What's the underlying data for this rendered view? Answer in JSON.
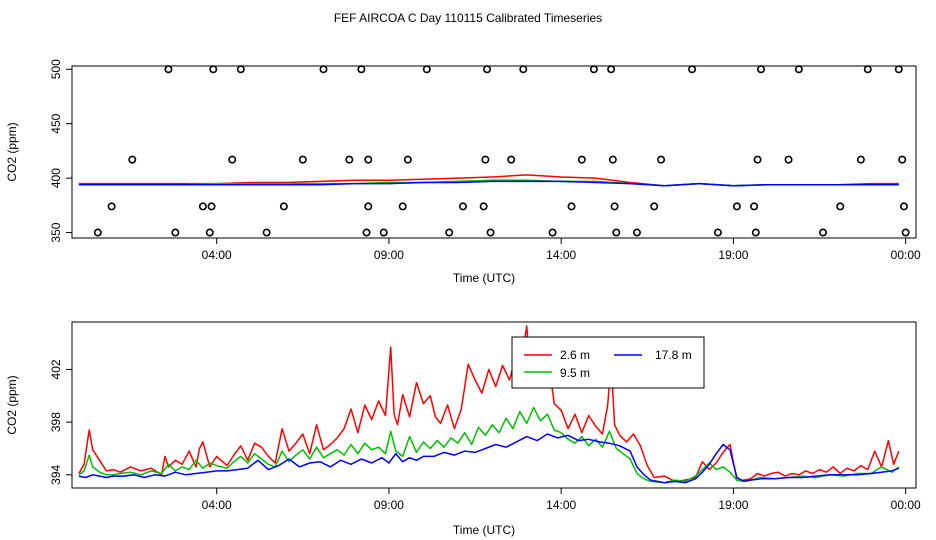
{
  "title": "FEF AIRCOA C  Day 110115  Calibrated Timeseries",
  "chart_data": [
    {
      "type": "line",
      "panel": "top",
      "xlabel": "Time (UTC)",
      "ylabel": "CO2 (ppm)",
      "xlim": [
        -0.2,
        24.3
      ],
      "ylim": [
        345,
        503
      ],
      "xticks": [
        4,
        9,
        14,
        19,
        24
      ],
      "xtick_labels": [
        "04:00",
        "09:00",
        "14:00",
        "19:00",
        "00:00"
      ],
      "yticks": [
        350,
        400,
        450,
        500
      ],
      "ytick_labels": [
        "350",
        "400",
        "450",
        "500"
      ],
      "calibration_points": {
        "x": [
          0.55,
          1.55,
          2.6,
          0.95,
          2.8,
          3.6,
          3.8,
          3.85,
          3.9,
          4.45,
          4.7,
          5.45,
          5.95,
          6.5,
          7.1,
          7.85,
          8.2,
          8.35,
          8.4,
          8.4,
          8.85,
          9.4,
          9.55,
          10.1,
          10.75,
          11.15,
          11.75,
          11.8,
          11.85,
          11.95,
          12.55,
          12.9,
          13.75,
          14.3,
          14.6,
          14.95,
          15.45,
          15.5,
          15.55,
          15.6,
          16.2,
          16.7,
          16.9,
          17.8,
          18.55,
          19.1,
          19.6,
          19.65,
          19.7,
          19.8,
          20.6,
          20.9,
          21.6,
          22.1,
          22.7,
          22.9,
          23.8,
          23.9,
          23.95,
          24.0
        ],
        "y": [
          350,
          417,
          500,
          374,
          350,
          374,
          350,
          374,
          500,
          417,
          500,
          350,
          374,
          417,
          500,
          417,
          500,
          350,
          374,
          417,
          350,
          374,
          417,
          500,
          350,
          374,
          374,
          417,
          500,
          350,
          417,
          500,
          350,
          374,
          417,
          500,
          500,
          417,
          374,
          350,
          350,
          374,
          417,
          500,
          350,
          374,
          374,
          350,
          417,
          500,
          417,
          500,
          350,
          374,
          417,
          500,
          500,
          417,
          374,
          350
        ]
      },
      "series": [
        {
          "name": "2.6 m",
          "color": "#ff0000",
          "x": [
            0,
            1,
            2,
            3,
            4,
            5,
            6,
            7,
            8,
            9,
            10,
            11,
            12,
            13,
            14,
            15,
            16,
            17,
            18,
            19,
            20,
            21,
            22,
            23,
            23.8
          ],
          "y": [
            395,
            395,
            395,
            395,
            395,
            396,
            396,
            397,
            398,
            398,
            399,
            400,
            401,
            403,
            401,
            400,
            396,
            393,
            395,
            393,
            394,
            394,
            394,
            395,
            395
          ]
        },
        {
          "name": "9.5 m",
          "color": "#00c000",
          "x": [
            0,
            1,
            2,
            3,
            4,
            5,
            6,
            7,
            8,
            9,
            10,
            11,
            12,
            13,
            14,
            15,
            16,
            17,
            18,
            19,
            20,
            21,
            22,
            23,
            23.8
          ],
          "y": [
            394,
            394,
            394,
            394,
            395,
            395,
            395,
            395,
            395,
            396,
            396,
            397,
            398,
            398,
            397,
            397,
            395,
            393,
            395,
            393,
            394,
            394,
            394,
            394,
            394
          ]
        },
        {
          "name": "17.8 m",
          "color": "#0000ff",
          "x": [
            0,
            1,
            2,
            3,
            4,
            5,
            6,
            7,
            8,
            9,
            10,
            11,
            12,
            13,
            14,
            15,
            16,
            17,
            18,
            19,
            20,
            21,
            22,
            23,
            23.8
          ],
          "y": [
            394,
            394,
            394,
            394,
            394,
            394,
            394,
            394,
            395,
            395,
            396,
            396,
            397,
            397,
            397,
            396,
            395,
            393,
            395,
            393,
            394,
            394,
            394,
            394,
            394
          ]
        }
      ]
    },
    {
      "type": "line",
      "panel": "bottom",
      "xlabel": "Time (UTC)",
      "ylabel": "CO2 (ppm)",
      "xlim": [
        -0.2,
        24.3
      ],
      "ylim": [
        393.0,
        405.6
      ],
      "xticks": [
        4,
        9,
        14,
        19,
        24
      ],
      "xtick_labels": [
        "04:00",
        "09:00",
        "14:00",
        "19:00",
        "00:00"
      ],
      "yticks": [
        394,
        398,
        402
      ],
      "ytick_labels": [
        "394",
        "398",
        "402"
      ],
      "legend": {
        "position": "top-center",
        "entries": [
          "2.6 m",
          "9.5 m",
          "17.8 m"
        ]
      },
      "series": [
        {
          "name": "2.6 m",
          "color": "#ff0000",
          "x": [
            0.0,
            0.15,
            0.3,
            0.4,
            0.6,
            0.8,
            1.0,
            1.2,
            1.5,
            1.8,
            2.1,
            2.4,
            2.5,
            2.6,
            2.8,
            3.0,
            3.2,
            3.4,
            3.5,
            3.6,
            3.8,
            4.0,
            4.3,
            4.5,
            4.7,
            4.9,
            5.1,
            5.3,
            5.5,
            5.7,
            5.9,
            6.1,
            6.3,
            6.5,
            6.7,
            6.9,
            7.1,
            7.3,
            7.5,
            7.7,
            7.9,
            8.1,
            8.3,
            8.5,
            8.7,
            8.9,
            9.05,
            9.15,
            9.25,
            9.4,
            9.6,
            9.8,
            10.0,
            10.2,
            10.35,
            10.5,
            10.7,
            10.9,
            11.1,
            11.3,
            11.5,
            11.7,
            11.9,
            12.1,
            12.3,
            12.5,
            12.7,
            12.85,
            13.0,
            13.1,
            13.2,
            13.35,
            13.5,
            13.65,
            13.8,
            14.0,
            14.2,
            14.4,
            14.6,
            14.8,
            15.0,
            15.2,
            15.35,
            15.45,
            15.55,
            15.7,
            15.9,
            16.1,
            16.3,
            16.5,
            16.7,
            17.0,
            17.3,
            17.6,
            17.9,
            18.1,
            18.3,
            18.5,
            18.7,
            18.9,
            19.1,
            19.3,
            19.5,
            19.7,
            19.9,
            20.1,
            20.3,
            20.5,
            20.7,
            20.9,
            21.1,
            21.3,
            21.5,
            21.7,
            21.9,
            22.1,
            22.3,
            22.5,
            22.7,
            22.9,
            23.1,
            23.3,
            23.5,
            23.65,
            23.8
          ],
          "y": [
            394.1,
            394.8,
            397.4,
            395.9,
            395.1,
            394.3,
            394.4,
            394.2,
            394.6,
            394.3,
            394.5,
            394.0,
            395.4,
            394.6,
            395.1,
            394.8,
            395.8,
            394.6,
            396.0,
            396.5,
            394.6,
            395.4,
            394.7,
            395.5,
            396.2,
            395.1,
            396.4,
            396.1,
            395.4,
            394.9,
            397.5,
            395.8,
            396.4,
            397.1,
            395.6,
            397.8,
            395.9,
            396.3,
            396.8,
            397.5,
            399.0,
            397.2,
            399.3,
            398.2,
            399.6,
            398.5,
            403.7,
            398.6,
            397.8,
            400.1,
            398.4,
            401.0,
            399.4,
            400.0,
            398.4,
            397.9,
            399.3,
            397.5,
            399.0,
            402.4,
            401.2,
            400.2,
            402.0,
            400.7,
            402.3,
            401.2,
            403.1,
            402.6,
            405.3,
            402.1,
            401.4,
            402.5,
            401.3,
            402.2,
            399.4,
            398.9,
            397.5,
            398.6,
            397.2,
            398.5,
            397.7,
            397.1,
            399.3,
            402.5,
            397.8,
            397.0,
            396.5,
            397.1,
            396.2,
            394.7,
            393.8,
            393.9,
            393.5,
            393.6,
            393.8,
            395.0,
            394.4,
            394.9,
            395.7,
            396.3,
            393.6,
            393.6,
            393.7,
            394.1,
            393.9,
            394.1,
            394.2,
            393.9,
            394.1,
            394.0,
            394.3,
            394.1,
            394.4,
            394.2,
            394.6,
            394.1,
            394.5,
            394.3,
            394.7,
            394.4,
            395.8,
            394.6,
            396.6,
            394.8,
            395.8
          ]
        },
        {
          "name": "9.5 m",
          "color": "#00c000",
          "x": [
            0.0,
            0.15,
            0.3,
            0.4,
            0.6,
            0.8,
            1.0,
            1.2,
            1.5,
            1.8,
            2.1,
            2.4,
            2.6,
            2.8,
            3.0,
            3.2,
            3.4,
            3.6,
            3.8,
            4.0,
            4.3,
            4.5,
            4.7,
            4.9,
            5.1,
            5.3,
            5.5,
            5.7,
            5.9,
            6.1,
            6.3,
            6.5,
            6.7,
            6.9,
            7.1,
            7.3,
            7.5,
            7.7,
            7.9,
            8.1,
            8.3,
            8.5,
            8.7,
            8.9,
            9.05,
            9.2,
            9.4,
            9.6,
            9.8,
            10.0,
            10.2,
            10.4,
            10.6,
            10.8,
            11.0,
            11.2,
            11.4,
            11.6,
            11.8,
            12.0,
            12.2,
            12.4,
            12.6,
            12.8,
            13.0,
            13.2,
            13.4,
            13.6,
            13.8,
            14.0,
            14.2,
            14.4,
            14.6,
            14.8,
            15.0,
            15.2,
            15.4,
            15.6,
            15.8,
            16.0,
            16.2,
            16.4,
            16.6,
            17.0,
            17.3,
            17.6,
            17.9,
            18.1,
            18.3,
            18.5,
            18.7,
            18.9,
            19.1,
            19.3,
            19.5,
            19.8,
            20.2,
            20.6,
            21.0,
            21.4,
            21.8,
            22.2,
            22.6,
            23.0,
            23.3,
            23.6,
            23.8
          ],
          "y": [
            394.0,
            394.3,
            395.5,
            394.6,
            394.2,
            394.0,
            394.0,
            394.1,
            394.2,
            394.0,
            394.3,
            394.1,
            394.8,
            394.3,
            394.6,
            394.4,
            395.1,
            394.5,
            394.9,
            394.7,
            394.5,
            395.0,
            395.4,
            394.9,
            395.6,
            395.2,
            394.8,
            394.6,
            395.8,
            395.0,
            395.5,
            395.9,
            395.2,
            396.1,
            395.3,
            395.6,
            395.9,
            395.5,
            396.3,
            395.6,
            396.4,
            395.9,
            396.1,
            395.6,
            397.3,
            395.8,
            395.4,
            396.9,
            395.7,
            396.5,
            396.0,
            396.6,
            396.1,
            396.8,
            396.4,
            397.2,
            396.3,
            397.6,
            397.0,
            397.8,
            397.2,
            398.3,
            397.5,
            398.8,
            397.9,
            399.1,
            398.1,
            398.6,
            397.4,
            397.2,
            396.7,
            396.4,
            396.9,
            396.2,
            396.7,
            396.1,
            397.3,
            396.0,
            395.6,
            395.2,
            394.1,
            393.7,
            393.5,
            393.4,
            393.6,
            393.5,
            393.9,
            394.4,
            394.9,
            394.4,
            394.6,
            394.2,
            393.6,
            393.5,
            393.6,
            393.8,
            393.7,
            393.8,
            393.9,
            393.8,
            394.0,
            393.9,
            394.1,
            394.1,
            394.6,
            394.2,
            394.6
          ]
        },
        {
          "name": "17.8 m",
          "color": "#0000ff",
          "x": [
            0.0,
            0.2,
            0.4,
            0.6,
            0.8,
            1.0,
            1.3,
            1.6,
            1.9,
            2.2,
            2.5,
            2.8,
            3.1,
            3.4,
            3.7,
            4.0,
            4.3,
            4.6,
            4.9,
            5.2,
            5.5,
            5.8,
            6.1,
            6.4,
            6.7,
            7.0,
            7.3,
            7.6,
            7.9,
            8.2,
            8.5,
            8.8,
            9.0,
            9.2,
            9.4,
            9.6,
            9.8,
            10.0,
            10.3,
            10.6,
            10.9,
            11.2,
            11.5,
            11.8,
            12.1,
            12.4,
            12.7,
            13.0,
            13.3,
            13.6,
            13.9,
            14.2,
            14.5,
            14.8,
            15.1,
            15.4,
            15.7,
            16.0,
            16.2,
            16.4,
            16.6,
            17.0,
            17.3,
            17.6,
            17.9,
            18.1,
            18.3,
            18.5,
            18.7,
            18.9,
            19.1,
            19.3,
            19.5,
            19.8,
            20.2,
            20.6,
            21.0,
            21.4,
            21.8,
            22.2,
            22.6,
            23.0,
            23.3,
            23.6,
            23.8
          ],
          "y": [
            393.9,
            393.8,
            394.0,
            393.9,
            393.8,
            393.9,
            393.9,
            394.0,
            393.8,
            394.0,
            393.9,
            394.2,
            394.0,
            394.1,
            394.2,
            394.3,
            394.3,
            394.4,
            394.5,
            395.1,
            394.4,
            394.7,
            395.2,
            394.6,
            394.9,
            395.0,
            394.6,
            395.1,
            394.8,
            395.2,
            394.9,
            395.3,
            394.9,
            395.6,
            395.0,
            395.3,
            395.1,
            395.4,
            395.4,
            395.7,
            395.5,
            395.8,
            395.7,
            396.0,
            396.3,
            396.1,
            396.5,
            396.9,
            396.6,
            397.1,
            396.8,
            397.0,
            396.6,
            396.7,
            396.5,
            396.4,
            396.2,
            395.8,
            394.6,
            394.0,
            393.6,
            393.4,
            393.5,
            393.4,
            393.7,
            394.2,
            394.8,
            395.6,
            396.3,
            395.9,
            393.8,
            393.5,
            393.6,
            393.7,
            393.7,
            393.8,
            393.8,
            393.9,
            394.0,
            394.0,
            394.0,
            394.1,
            394.2,
            394.3,
            394.5
          ]
        }
      ]
    }
  ]
}
